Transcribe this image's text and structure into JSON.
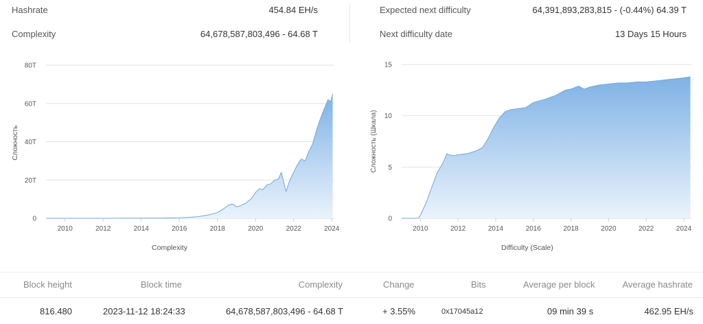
{
  "stats": {
    "hashrate_label": "Hashrate",
    "hashrate_value": "454.84 EH/s",
    "complexity_label": "Complexity",
    "complexity_value": "64,678,587,803,496 - 64.68 T",
    "expected_label": "Expected next difficulty",
    "expected_value": "64,391,893,283,815 - (-0.44%) 64.39 T",
    "next_date_label": "Next difficulty date",
    "next_date_value": "13 Days 15 Hours"
  },
  "colors": {
    "fill_top": "#7fb2e5",
    "fill_bottom": "#eaf3fc",
    "line": "#6fa7df",
    "grid": "#e3e3e3"
  },
  "chart_data": [
    {
      "type": "area",
      "title": "",
      "xlabel": "Complexity",
      "ylabel": "Сложность",
      "xlim": [
        2009,
        2024.1
      ],
      "ylim": [
        0,
        80
      ],
      "yticks": [
        "0",
        "20T",
        "40T",
        "60T",
        "80T"
      ],
      "ytick_values": [
        0,
        20,
        40,
        60,
        80
      ],
      "xticks": [
        "2010",
        "2012",
        "2014",
        "2016",
        "2018",
        "2020",
        "2022",
        "2024"
      ],
      "xtick_values": [
        2010,
        2012,
        2014,
        2016,
        2018,
        2020,
        2022,
        2024
      ],
      "x": [
        2009,
        2012,
        2014,
        2015,
        2016,
        2016.5,
        2017,
        2017.5,
        2018,
        2018.3,
        2018.6,
        2018.8,
        2019,
        2019.2,
        2019.5,
        2019.8,
        2020,
        2020.2,
        2020.4,
        2020.6,
        2020.8,
        2021,
        2021.2,
        2021.35,
        2021.5,
        2021.6,
        2021.8,
        2022,
        2022.2,
        2022.4,
        2022.6,
        2022.8,
        2023,
        2023.2,
        2023.4,
        2023.6,
        2023.8,
        2023.95,
        2024.05
      ],
      "values": [
        0,
        0,
        0.1,
        0.1,
        0.3,
        0.5,
        0.9,
        1.7,
        3.0,
        4.8,
        7.0,
        7.5,
        6.0,
        6.5,
        8.0,
        10.5,
        13.5,
        15.5,
        15.0,
        17.5,
        18.0,
        20.0,
        20.5,
        24.0,
        18.0,
        14.0,
        20.0,
        24.0,
        28.0,
        31.0,
        30.0,
        35.0,
        39.0,
        46.0,
        52.0,
        57.0,
        62.0,
        61.0,
        65.0
      ]
    },
    {
      "type": "area",
      "title": "",
      "xlabel": "Difficulty (Scale)",
      "ylabel": "Сложность (Шкала)",
      "xlim": [
        2009,
        2024.4
      ],
      "ylim": [
        0,
        15
      ],
      "yticks": [
        "0",
        "5",
        "10",
        "15"
      ],
      "ytick_values": [
        0,
        5,
        10,
        15
      ],
      "xticks": [
        "2010",
        "2012",
        "2014",
        "2016",
        "2018",
        "2020",
        "2022",
        "2024"
      ],
      "xtick_values": [
        2010,
        2012,
        2014,
        2016,
        2018,
        2020,
        2022,
        2024
      ],
      "x": [
        2009,
        2009.9,
        2010.0,
        2010.3,
        2010.6,
        2010.9,
        2011.2,
        2011.4,
        2011.5,
        2011.8,
        2012,
        2012.5,
        2013,
        2013.3,
        2013.6,
        2013.9,
        2014.2,
        2014.5,
        2014.8,
        2015.2,
        2015.6,
        2016,
        2016.6,
        2017.2,
        2017.7,
        2018,
        2018.4,
        2018.7,
        2019.0,
        2019.5,
        2020,
        2020.5,
        2021,
        2021.5,
        2022,
        2022.5,
        2023,
        2023.5,
        2024,
        2024.35
      ],
      "values": [
        0,
        0,
        0.3,
        1.5,
        3.0,
        4.5,
        5.4,
        6.3,
        6.2,
        6.1,
        6.2,
        6.3,
        6.6,
        6.9,
        7.8,
        8.9,
        9.8,
        10.4,
        10.6,
        10.7,
        10.8,
        11.3,
        11.6,
        12.0,
        12.5,
        12.6,
        12.9,
        12.6,
        12.8,
        13.0,
        13.1,
        13.2,
        13.2,
        13.3,
        13.3,
        13.4,
        13.5,
        13.6,
        13.7,
        13.8
      ]
    }
  ],
  "table": {
    "headers": [
      "Block height",
      "Block time",
      "Complexity",
      "Change",
      "Bits",
      "Average per block",
      "Average hashrate"
    ],
    "row": {
      "block_height": "816.480",
      "block_time": "2023-11-12 18:24:33",
      "complexity": "64,678,587,803,496 - 64.68 T",
      "change": "+ 3.55%",
      "bits": "0x17045a12",
      "avg_per_block": "09 min 39 s",
      "avg_hashrate": "462.95 EH/s"
    }
  }
}
